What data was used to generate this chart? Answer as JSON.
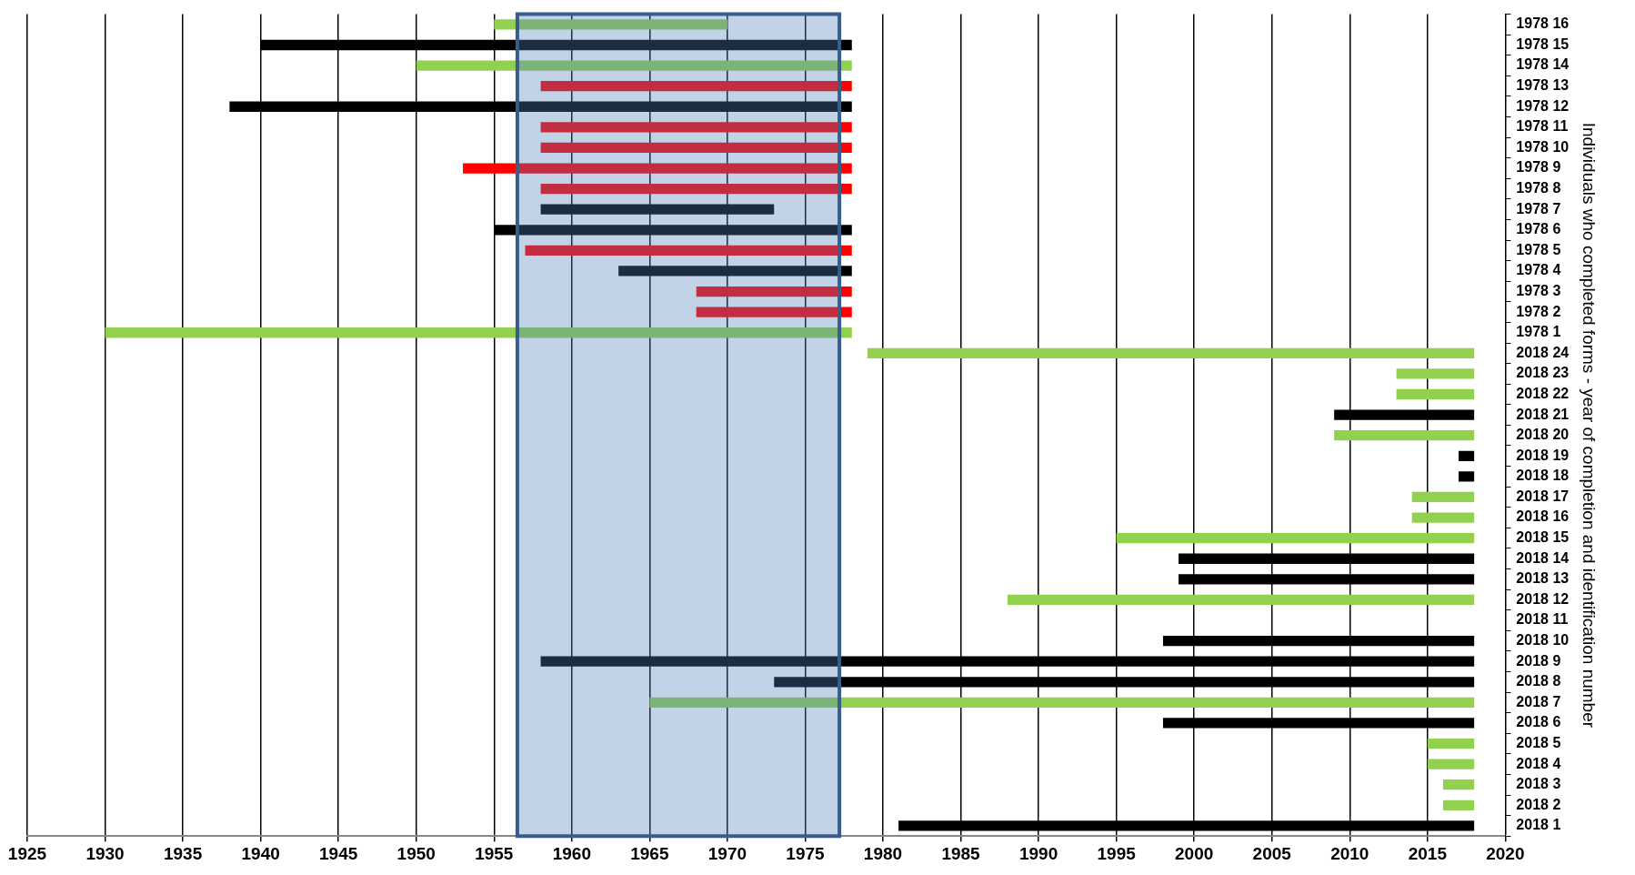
{
  "chart_data": {
    "type": "bar",
    "orientation": "horizontal",
    "ylabel": "Individuals who completed forms - year of completion and identification number",
    "categories": [
      "1978 16",
      "1978 15",
      "1978 14",
      "1978 13",
      "1978 12",
      "1978 11",
      "1978 10",
      "1978 9",
      "1978 8",
      "1978 7",
      "1978 6",
      "1978 5",
      "1978 4",
      "1978 3",
      "1978 2",
      "1978 1",
      "2018 24",
      "2018 23",
      "2018 22",
      "2018 21",
      "2018 20",
      "2018 19",
      "2018 18",
      "2018 17",
      "2018 16",
      "2018 15",
      "2018 14",
      "2018 13",
      "2018 12",
      "2018 11",
      "2018 10",
      "2018 9",
      "2018 8",
      "2018 7",
      "2018 6",
      "2018 5",
      "2018 4",
      "2018 3",
      "2018 2",
      "2018 1"
    ],
    "base": [
      1955,
      1940,
      1950,
      1958,
      1938,
      1958,
      1958,
      1953,
      1958,
      1958,
      1955,
      1957,
      1963,
      1968,
      1968,
      1930,
      1979,
      2013,
      2013,
      2009,
      2009,
      2017,
      2017,
      2014,
      2014,
      1995,
      1999,
      1999,
      1988,
      null,
      1998,
      1958,
      1973,
      1965,
      1998,
      2015,
      2015,
      2016,
      2016,
      1981
    ],
    "values": [
      15,
      38,
      28,
      20,
      40,
      20,
      20,
      25,
      20,
      15,
      23,
      21,
      15,
      10,
      10,
      48,
      39,
      5,
      5,
      9,
      9,
      1,
      1,
      4,
      4,
      23,
      19,
      19,
      30,
      null,
      20,
      60,
      45,
      53,
      20,
      3,
      3,
      2,
      2,
      37
    ],
    "colors": [
      "#92d050",
      "#000000",
      "#92d050",
      "#ff0000",
      "#000000",
      "#ff0000",
      "#ff0000",
      "#ff0000",
      "#ff0000",
      "#000000",
      "#000000",
      "#ff0000",
      "#000000",
      "#ff0000",
      "#ff0000",
      "#92d050",
      "#92d050",
      "#92d050",
      "#92d050",
      "#000000",
      "#92d050",
      "#000000",
      "#000000",
      "#92d050",
      "#92d050",
      "#92d050",
      "#000000",
      "#000000",
      "#92d050",
      "#000000",
      "#000000",
      "#000000",
      "#000000",
      "#92d050",
      "#000000",
      "#92d050",
      "#92d050",
      "#92d050",
      "#92d050",
      "#000000"
    ],
    "xlim": [
      1925,
      2020
    ],
    "xticks": [
      1925,
      1930,
      1935,
      1940,
      1945,
      1950,
      1955,
      1960,
      1965,
      1970,
      1975,
      1980,
      1985,
      1990,
      1995,
      2000,
      2005,
      2010,
      2015,
      2020
    ],
    "bands": [
      {
        "axis": "x",
        "from": 1956.5,
        "to": 1977.2,
        "color": "#4f81bd"
      }
    ],
    "grid": "x",
    "legend": false
  }
}
